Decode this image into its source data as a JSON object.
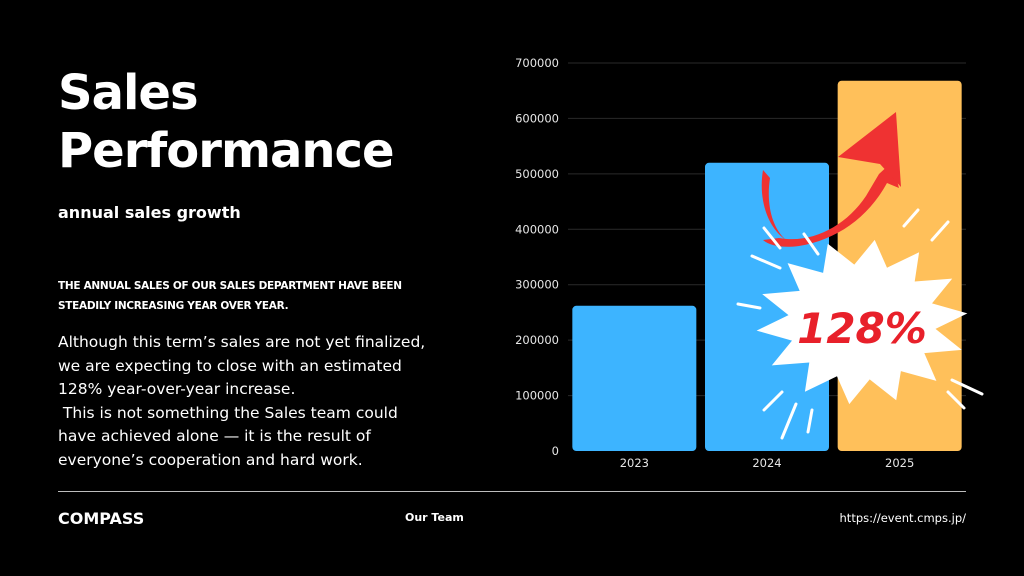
{
  "slide": {
    "title_lines": [
      "Sales",
      "Performance"
    ],
    "subtitle": "annual sales growth",
    "caps_lines": [
      "THE ANNUAL SALES OF OUR SALES DEPARTMENT HAVE BEEN",
      "STEADILY INCREASING YEAR OVER YEAR."
    ],
    "body_lines": [
      "Although this term’s sales are not yet finalized,",
      "we are expecting to close with an estimated",
      "128% year-over-year increase.",
      " This is not something the Sales team could",
      "have achieved alone — it is the result of",
      "everyone’s cooperation and hard work."
    ]
  },
  "footer": {
    "brand": "COMPASS",
    "team": "Our Team",
    "url": "https://event.cmps.jp/"
  },
  "callout": {
    "label": "128%",
    "arrow_icon": "trend-arrow-icon",
    "burst_icon": "starburst-icon"
  },
  "colors": {
    "background": "#000000",
    "bar_blue": "#3db4ff",
    "bar_orange": "#ffc05a",
    "arrow": "#ef3232",
    "callout_text": "#e8202a",
    "gridline": "#2a2a2a",
    "text": "#ffffff"
  },
  "chart_data": {
    "type": "bar",
    "categories": [
      "2023",
      "2024",
      "2025"
    ],
    "values": [
      262000,
      520000,
      668000
    ],
    "bar_colors": [
      "#3db4ff",
      "#3db4ff",
      "#ffc05a"
    ],
    "ylim": [
      0,
      700000
    ],
    "yticks": [
      "0",
      "100000",
      "200000",
      "300000",
      "400000",
      "500000",
      "600000",
      "700000"
    ],
    "grid": true,
    "xlabel": "",
    "ylabel": ""
  }
}
